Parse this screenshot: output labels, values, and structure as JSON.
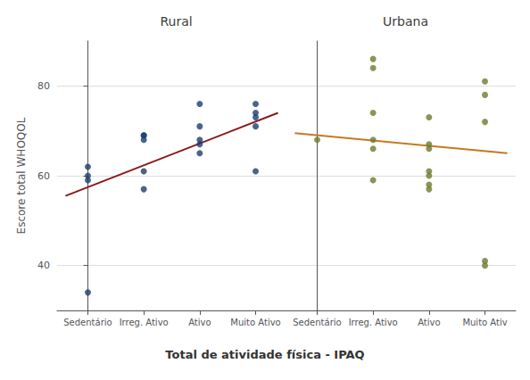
{
  "chart_data": [
    {
      "type": "scatter",
      "title": "Rural",
      "xlabel": "Total de atividade física - IPAQ",
      "ylabel": "Escore total WHOQOL",
      "xlim": [
        -0.55,
        3.55
      ],
      "xticks": [
        {
          "value": 0,
          "label": "Sedentário"
        },
        {
          "value": 1,
          "label": "Irreg. Ativo"
        },
        {
          "value": 2,
          "label": "Ativo"
        },
        {
          "value": 3,
          "label": "Muito Ativo"
        }
      ],
      "ylim": [
        30,
        90
      ],
      "yticks": [
        40,
        60,
        80
      ],
      "grid": true,
      "series": [
        {
          "type": "scatter",
          "color": "#1b3d6e",
          "x": [
            0,
            0,
            0,
            0,
            1,
            1,
            1,
            1,
            1,
            2,
            2,
            2,
            2,
            2,
            3,
            3,
            3,
            3,
            3
          ],
          "values": [
            62,
            60,
            59,
            34,
            69,
            69,
            68,
            61,
            57,
            76,
            71,
            68,
            67,
            65,
            76,
            74,
            73,
            71,
            61
          ]
        },
        {
          "type": "line",
          "color": "#8b1a1a",
          "x": [
            -0.4,
            3.4
          ],
          "values": [
            55.5,
            74.0
          ]
        }
      ]
    },
    {
      "type": "scatter",
      "title": "Urbana",
      "xlim": [
        -0.55,
        3.55
      ],
      "xticks": [
        {
          "value": 0,
          "label": "Sedentário"
        },
        {
          "value": 1,
          "label": "Irreg. Ativo"
        },
        {
          "value": 2,
          "label": "Ativo"
        },
        {
          "value": 3,
          "label": "Muito Ativ"
        }
      ],
      "ylim": [
        30,
        90
      ],
      "yticks": [
        40,
        60,
        80
      ],
      "grid": true,
      "tick_labels": "x",
      "series": [
        {
          "type": "scatter",
          "color": "#6b7c2e",
          "x": [
            0,
            1,
            1,
            1,
            1,
            1,
            1,
            2,
            2,
            2,
            2,
            2,
            2,
            2,
            3,
            3,
            3,
            3,
            3
          ],
          "values": [
            68,
            86,
            84,
            74,
            68,
            66,
            59,
            73,
            67,
            66,
            61,
            60,
            58,
            57,
            81,
            78,
            72,
            41,
            40
          ]
        },
        {
          "type": "line",
          "color": "#c87820",
          "x": [
            -0.4,
            3.4
          ],
          "values": [
            69.5,
            65.0
          ]
        }
      ]
    }
  ]
}
